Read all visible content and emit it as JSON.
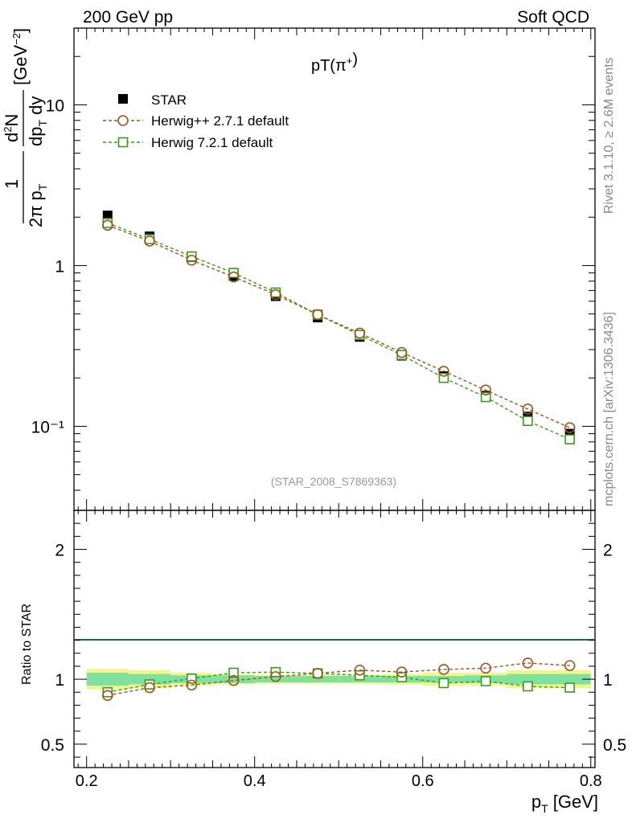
{
  "header": {
    "left": "200 GeV pp",
    "right": "Soft QCD"
  },
  "side_text": {
    "top": "Rivet 3.1.10, ≥ 2.6M events",
    "bottom": "mcplots.cern.ch [arXiv:1306.3436]"
  },
  "colors": {
    "data": "#000000",
    "herwig_pp": "#a0521e",
    "herwig7": "#3a9a1c",
    "band_inner": "#7fe0a0",
    "band_outer": "#f3f58a",
    "ref_line": "#1b6f3a",
    "watermark": "#999999"
  },
  "chart_data": [
    {
      "type": "scatter",
      "title": "pT(π⁺)",
      "xlabel": "p_T [GeV]",
      "ylabel": "1/2π p_T d²N/dp_T dy [GeV⁻²]",
      "yscale": "log",
      "xlim": [
        0.185,
        0.805
      ],
      "ylim": [
        0.03,
        30
      ],
      "y_ticks": [
        "10⁻¹",
        "1",
        "10"
      ],
      "annotation": "(STAR_2008_S7869363)",
      "legend_position": "top-left",
      "x": [
        0.225,
        0.275,
        0.325,
        0.375,
        0.425,
        0.475,
        0.525,
        0.575,
        0.625,
        0.675,
        0.725,
        0.775
      ],
      "series": [
        {
          "name": "STAR",
          "marker": "filled-square",
          "values": [
            2.05,
            1.52,
            1.13,
            0.86,
            0.645,
            0.475,
            0.36,
            0.275,
            0.205,
            0.155,
            0.115,
            0.09
          ]
        },
        {
          "name": "Herwig++ 2.7.1 default",
          "marker": "open-circle",
          "values": [
            1.78,
            1.42,
            1.08,
            0.85,
            0.66,
            0.495,
            0.38,
            0.288,
            0.22,
            0.168,
            0.128,
            0.098
          ]
        },
        {
          "name": "Herwig 7.2.1 default",
          "marker": "open-square",
          "values": [
            1.84,
            1.46,
            1.14,
            0.9,
            0.68,
            0.495,
            0.37,
            0.278,
            0.2,
            0.152,
            0.108,
            0.083
          ]
        }
      ]
    },
    {
      "type": "line",
      "ylabel": "Ratio to STAR",
      "xlim": [
        0.185,
        0.805
      ],
      "ylim": [
        0.32,
        2.3
      ],
      "x_ticks": [
        "0.2",
        "0.4",
        "0.6",
        "0.8"
      ],
      "y_ticks": [
        "0.5",
        "1",
        "2"
      ],
      "x": [
        0.225,
        0.275,
        0.325,
        0.375,
        0.425,
        0.475,
        0.525,
        0.575,
        0.625,
        0.675,
        0.725,
        0.775
      ],
      "series": [
        {
          "name": "Herwig++ 2.7.1 default",
          "values": [
            0.875,
            0.935,
            0.955,
            0.99,
            1.02,
            1.045,
            1.07,
            1.055,
            1.075,
            1.085,
            1.125,
            1.105
          ]
        },
        {
          "name": "Herwig 7.2.1 default",
          "values": [
            0.9,
            0.96,
            1.005,
            1.05,
            1.055,
            1.045,
            1.03,
            1.015,
            0.97,
            0.985,
            0.945,
            0.935
          ]
        }
      ],
      "band_inner": [
        0.05,
        0.04,
        0.03,
        0.03,
        0.025,
        0.025,
        0.025,
        0.025,
        0.025,
        0.03,
        0.04,
        0.04
      ],
      "band_outer": [
        0.08,
        0.07,
        0.05,
        0.04,
        0.035,
        0.035,
        0.035,
        0.04,
        0.05,
        0.05,
        0.07,
        0.07
      ]
    }
  ]
}
